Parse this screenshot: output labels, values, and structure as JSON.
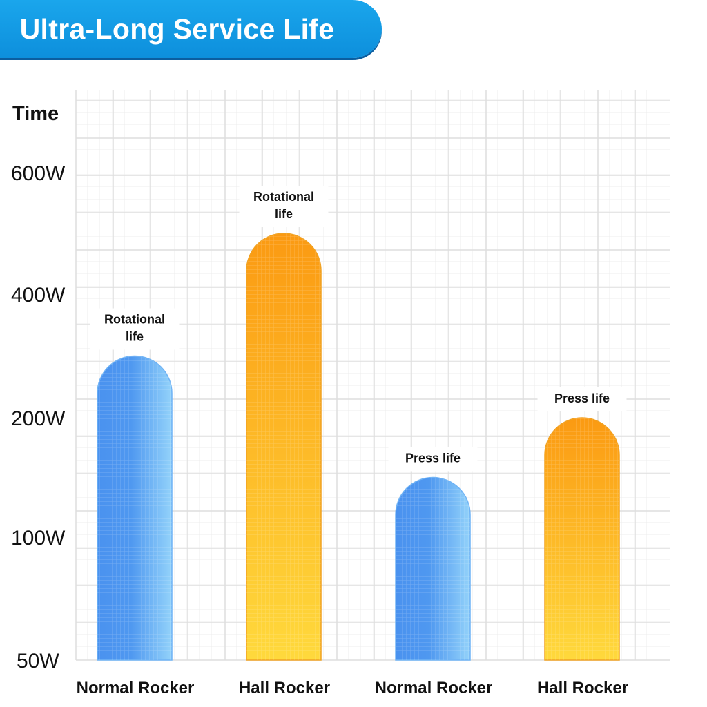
{
  "title": "Ultra-Long Service Life",
  "chart_data": {
    "type": "bar",
    "title": "Ultra-Long Service Life",
    "xlabel": "",
    "ylabel": "Time",
    "categories": [
      "Normal Rocker",
      "Hall Rocker",
      "Normal Rocker",
      "Hall Rocker"
    ],
    "values": [
      300,
      500,
      150,
      200
    ],
    "data_labels": [
      [
        "Rotational",
        "life"
      ],
      [
        "Rotational",
        "life"
      ],
      [
        "Press life"
      ],
      [
        "Press life"
      ]
    ],
    "bar_colors": [
      "blue",
      "orange",
      "blue",
      "orange"
    ],
    "y_ticks": [
      {
        "value": 50,
        "label": "50W"
      },
      {
        "value": 100,
        "label": "100W"
      },
      {
        "value": 200,
        "label": "200W"
      },
      {
        "value": 400,
        "label": "400W"
      },
      {
        "value": 600,
        "label": "600W"
      }
    ],
    "grid": true
  },
  "colors": {
    "banner": "#0d8fdc",
    "blue_light": "#8fd0fb",
    "blue_dark": "#4690ee",
    "orange_light": "#ffd23a",
    "orange_dark": "#fb9c14"
  }
}
